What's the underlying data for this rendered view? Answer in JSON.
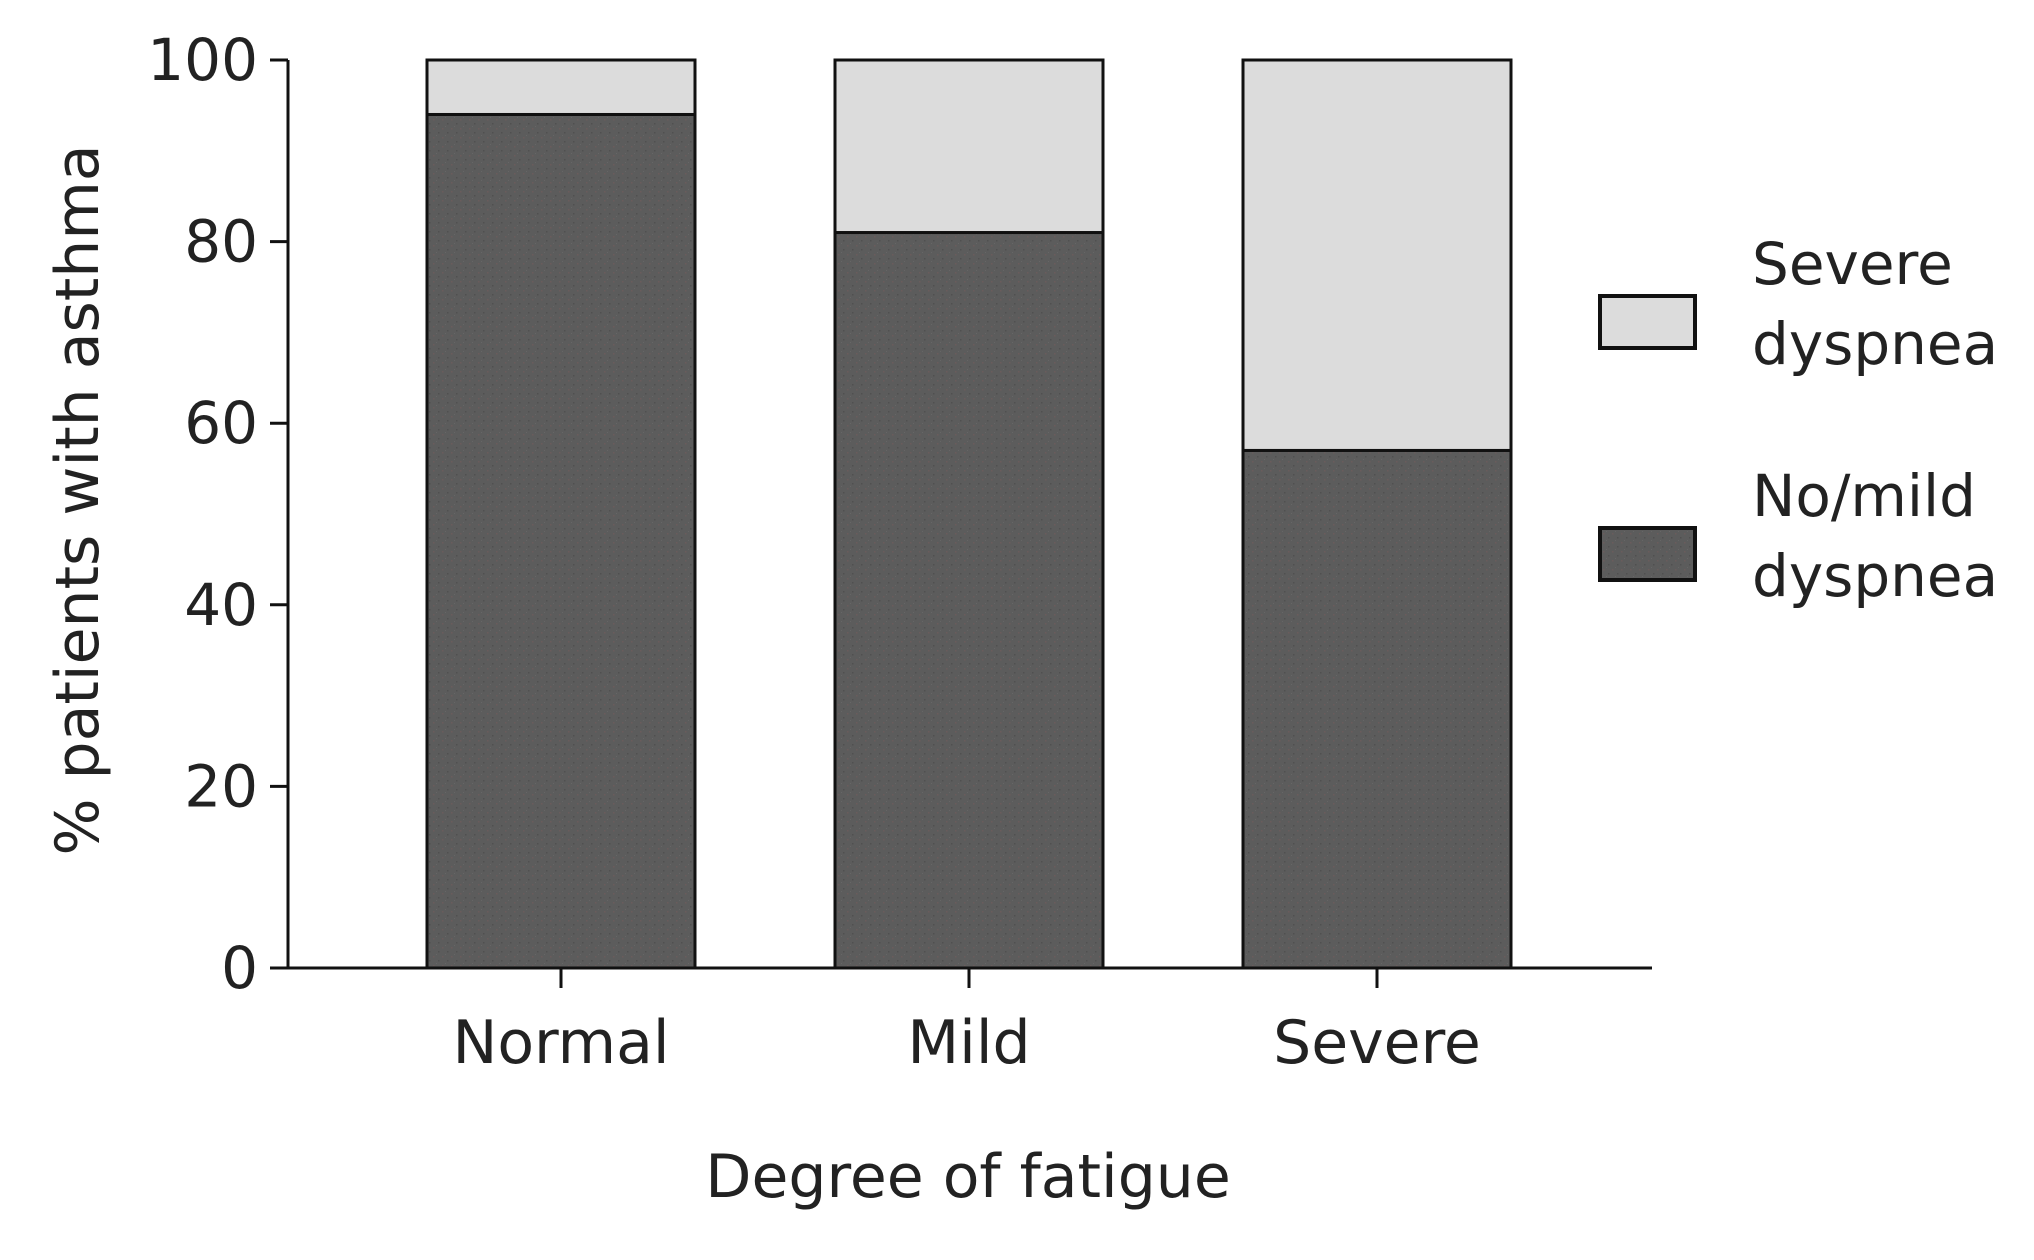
{
  "chart_data": {
    "type": "bar",
    "stacked": true,
    "title": "",
    "xlabel": "Degree of fatigue",
    "ylabel": "% patients with asthma",
    "categories": [
      "Normal",
      "Mild",
      "Severe"
    ],
    "ylim": [
      0,
      100
    ],
    "yticks": [
      0,
      20,
      40,
      60,
      80,
      100
    ],
    "series": [
      {
        "name": "No/mild dyspnea",
        "legend_lines": [
          "No/mild",
          "dyspnea"
        ],
        "values": [
          94,
          81,
          57
        ],
        "color": "#5c5c5c"
      },
      {
        "name": "Severe dyspnea",
        "legend_lines": [
          "Severe",
          "dyspnea"
        ],
        "values": [
          6,
          19,
          43
        ],
        "color": "#dcdcdc"
      }
    ],
    "legend_position": "right",
    "grid": false
  }
}
